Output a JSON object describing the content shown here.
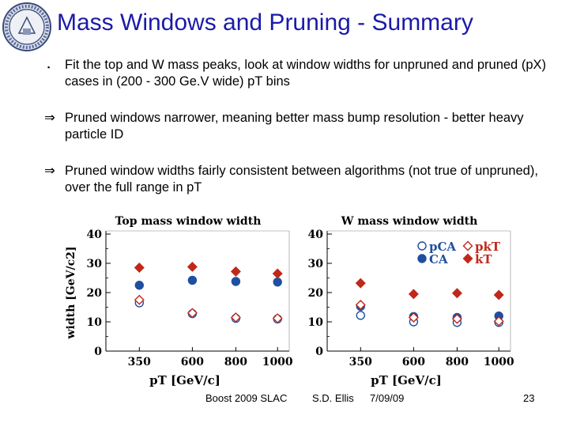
{
  "slide": {
    "title": "Mass Windows and Pruning - Summary",
    "bullets": [
      {
        "marker": "▪",
        "text": "Fit the top and W mass peaks, look at window widths for unpruned and pruned (pX) cases in (200 - 300 Ge.V wide) pT bins"
      },
      {
        "marker": "⇒",
        "text": "Pruned windows narrower, meaning better mass bump resolution - better heavy particle ID"
      },
      {
        "marker": "⇒",
        "text": "Pruned window widths fairly consistent between algorithms (not true of unpruned), over the full range in pT"
      }
    ],
    "footer": {
      "event": "Boost 2009  SLAC",
      "author": "S.D. Ellis",
      "date": "7/09/09",
      "page": "23"
    }
  },
  "colors": {
    "title": "#1a1aa8",
    "blue": "#1f4fa0",
    "red": "#c0281a",
    "axis": "#000000"
  },
  "chart_data": [
    {
      "type": "scatter",
      "title": "Top mass window width",
      "xlabel": "pT [GeV/c]",
      "ylabel": "width [GeV/c2]",
      "categories": [
        "350",
        "600",
        "800",
        "1000"
      ],
      "ylim": [
        0,
        40
      ],
      "yticks": [
        "0",
        "10",
        "20",
        "30",
        "40"
      ],
      "series": [
        {
          "name": "pCA",
          "marker": "open-circle",
          "color": "#1f4fa0",
          "values": [
            16.5,
            12.8,
            11.2,
            11.0
          ]
        },
        {
          "name": "CA",
          "marker": "filled-circle",
          "color": "#1f4fa0",
          "values": [
            22.5,
            24.2,
            23.8,
            23.6
          ]
        },
        {
          "name": "pkT",
          "marker": "open-diamond",
          "color": "#c0281a",
          "values": [
            17.5,
            13.0,
            11.5,
            11.2
          ]
        },
        {
          "name": "kT",
          "marker": "filled-diamond",
          "color": "#c0281a",
          "values": [
            28.5,
            28.8,
            27.2,
            26.5
          ]
        }
      ]
    },
    {
      "type": "scatter",
      "title": "W mass window width",
      "xlabel": "pT [GeV/c]",
      "ylabel": "",
      "categories": [
        "350",
        "600",
        "800",
        "1000"
      ],
      "ylim": [
        0,
        40
      ],
      "yticks": [
        "0",
        "10",
        "20",
        "30",
        "40"
      ],
      "legend": [
        {
          "label": "pCA",
          "marker": "open-circle",
          "color": "#1f4fa0"
        },
        {
          "label": "pkT",
          "marker": "open-diamond",
          "color": "#c0281a"
        },
        {
          "label": "CA",
          "marker": "filled-circle",
          "color": "#1f4fa0"
        },
        {
          "label": "kT",
          "marker": "filled-diamond",
          "color": "#c0281a"
        }
      ],
      "series": [
        {
          "name": "pCA",
          "marker": "open-circle",
          "color": "#1f4fa0",
          "values": [
            12.2,
            10.0,
            9.8,
            9.8
          ]
        },
        {
          "name": "CA",
          "marker": "filled-circle",
          "color": "#1f4fa0",
          "values": [
            15.3,
            11.8,
            11.5,
            12.0
          ]
        },
        {
          "name": "pkT",
          "marker": "open-diamond",
          "color": "#c0281a",
          "values": [
            15.8,
            11.5,
            11.0,
            10.2
          ]
        },
        {
          "name": "kT",
          "marker": "filled-diamond",
          "color": "#c0281a",
          "values": [
            23.2,
            19.5,
            19.8,
            19.2
          ]
        }
      ]
    }
  ]
}
